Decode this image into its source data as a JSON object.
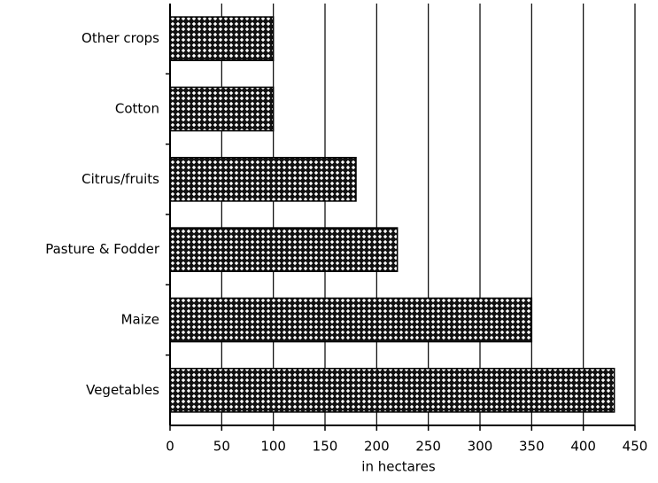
{
  "chart_data": {
    "type": "hbar",
    "categories": [
      "Other crops",
      "Cotton",
      "Citrus/fruits",
      "Pasture & Fodder",
      "Maize",
      "Vegetables"
    ],
    "values": [
      100,
      100,
      180,
      220,
      350,
      430
    ],
    "color": "#000000",
    "xlabel": "in hectares",
    "xlim": [
      0,
      450
    ],
    "xticks": [
      0,
      50,
      100,
      150,
      200,
      250,
      300,
      350,
      400,
      450
    ],
    "grid": true
  }
}
